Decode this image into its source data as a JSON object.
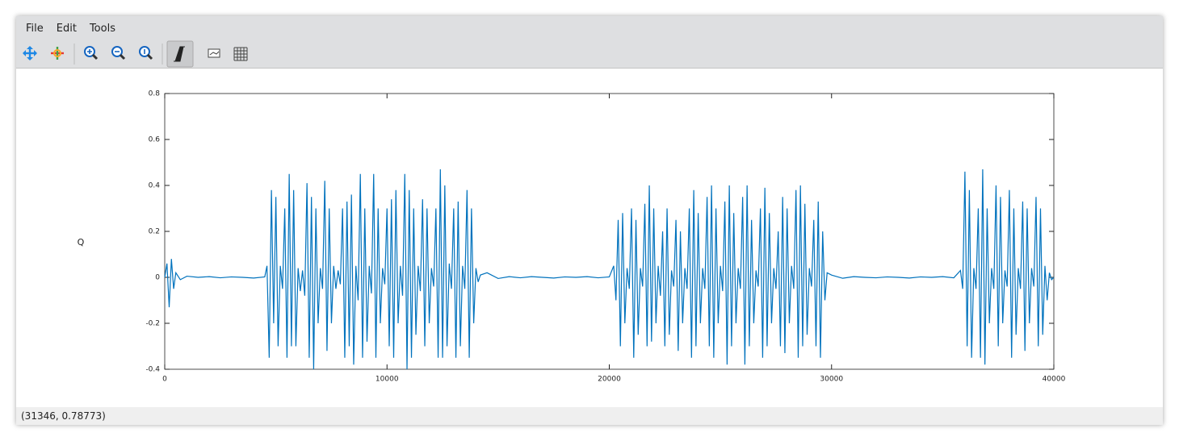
{
  "menu": [
    "File",
    "Edit",
    "Tools"
  ],
  "status": "(31346, 0.78773)",
  "chart_data": {
    "type": "line",
    "ylabel": "Q",
    "color": "#0072bd",
    "xlim": [
      0,
      40000
    ],
    "ylim": [
      -0.4,
      0.8
    ],
    "xticks": [
      0,
      10000,
      20000,
      30000,
      40000
    ],
    "yticks": [
      -0.4,
      -0.2,
      0,
      0.2,
      0.4,
      0.6,
      0.8
    ],
    "x": [
      0,
      100,
      200,
      300,
      400,
      500,
      700,
      1000,
      1500,
      2000,
      2500,
      3000,
      3500,
      4000,
      4500,
      4600,
      4700,
      4800,
      4900,
      5000,
      5100,
      5200,
      5300,
      5400,
      5500,
      5600,
      5700,
      5800,
      5900,
      6000,
      6100,
      6200,
      6300,
      6400,
      6500,
      6600,
      6700,
      6800,
      6900,
      7000,
      7100,
      7200,
      7300,
      7400,
      7500,
      7600,
      7700,
      7800,
      7900,
      8000,
      8100,
      8200,
      8300,
      8400,
      8500,
      8600,
      8700,
      8800,
      8900,
      9000,
      9100,
      9200,
      9300,
      9400,
      9500,
      9600,
      9700,
      9800,
      9900,
      10000,
      10100,
      10200,
      10300,
      10400,
      10500,
      10600,
      10700,
      10800,
      10900,
      11000,
      11100,
      11200,
      11300,
      11400,
      11500,
      11600,
      11700,
      11800,
      11900,
      12000,
      12100,
      12200,
      12300,
      12400,
      12500,
      12600,
      12700,
      12800,
      12900,
      13000,
      13100,
      13200,
      13300,
      13400,
      13500,
      13600,
      13700,
      13800,
      13900,
      14000,
      14100,
      14200,
      14500,
      15000,
      15500,
      16000,
      16500,
      17000,
      17500,
      18000,
      18500,
      19000,
      19500,
      20000,
      20200,
      20300,
      20400,
      20500,
      20600,
      20700,
      20800,
      20900,
      21000,
      21100,
      21200,
      21300,
      21400,
      21500,
      21600,
      21700,
      21800,
      21900,
      22000,
      22100,
      22200,
      22300,
      22400,
      22500,
      22600,
      22700,
      22800,
      22900,
      23000,
      23100,
      23200,
      23300,
      23400,
      23500,
      23600,
      23700,
      23800,
      23900,
      24000,
      24100,
      24200,
      24300,
      24400,
      24500,
      24600,
      24700,
      24800,
      24900,
      25000,
      25100,
      25200,
      25300,
      25400,
      25500,
      25600,
      25700,
      25800,
      25900,
      26000,
      26100,
      26200,
      26300,
      26400,
      26500,
      26600,
      26700,
      26800,
      26900,
      27000,
      27100,
      27200,
      27300,
      27400,
      27500,
      27600,
      27700,
      27800,
      27900,
      28000,
      28100,
      28200,
      28300,
      28400,
      28500,
      28600,
      28700,
      28800,
      28900,
      29000,
      29100,
      29200,
      29300,
      29400,
      29500,
      29600,
      29700,
      29800,
      30000,
      30500,
      31000,
      31500,
      32000,
      32500,
      33000,
      33500,
      34000,
      34500,
      35000,
      35500,
      35800,
      35900,
      36000,
      36100,
      36200,
      36300,
      36400,
      36500,
      36600,
      36700,
      36800,
      36900,
      37000,
      37100,
      37200,
      37300,
      37400,
      37500,
      37600,
      37700,
      37800,
      37900,
      38000,
      38100,
      38200,
      38300,
      38400,
      38500,
      38600,
      38700,
      38800,
      38900,
      39000,
      39100,
      39200,
      39300,
      39400,
      39500,
      39600,
      39700,
      39800,
      39900,
      40000
    ],
    "values": [
      0,
      0.06,
      -0.13,
      0.08,
      -0.05,
      0.02,
      -0.01,
      0.005,
      0,
      0.003,
      -0.002,
      0.002,
      0,
      -0.003,
      0.002,
      0.05,
      -0.35,
      0.38,
      -0.2,
      0.35,
      -0.3,
      0.05,
      -0.05,
      0.3,
      -0.35,
      0.45,
      -0.3,
      0.38,
      -0.3,
      0.04,
      -0.06,
      0.03,
      -0.08,
      0.41,
      -0.35,
      0.35,
      -0.4,
      0.3,
      -0.2,
      0.04,
      -0.05,
      0.42,
      -0.32,
      0.3,
      -0.2,
      0.05,
      -0.05,
      0.03,
      -0.03,
      0.3,
      -0.35,
      0.33,
      -0.3,
      0.36,
      -0.38,
      0.05,
      -0.1,
      0.45,
      -0.35,
      0.3,
      -0.28,
      0.05,
      -0.07,
      0.45,
      -0.35,
      0.3,
      -0.2,
      0.04,
      -0.03,
      0.3,
      -0.3,
      0.34,
      -0.35,
      0.38,
      -0.2,
      0.05,
      -0.08,
      0.45,
      -0.4,
      0.38,
      -0.35,
      0.3,
      -0.25,
      0.05,
      -0.06,
      0.34,
      -0.3,
      0.3,
      -0.2,
      0.04,
      -0.04,
      0.3,
      -0.35,
      0.47,
      -0.35,
      0.4,
      -0.3,
      0.06,
      -0.05,
      0.3,
      -0.35,
      0.33,
      -0.3,
      0.05,
      -0.05,
      0.38,
      -0.35,
      0.3,
      -0.2,
      0.04,
      -0.02,
      0.01,
      0.02,
      -0.005,
      0.003,
      -0.002,
      0.003,
      0,
      -0.003,
      0.002,
      0,
      0.003,
      -0.002,
      0.002,
      0.05,
      -0.1,
      0.25,
      -0.3,
      0.28,
      -0.2,
      0.04,
      -0.05,
      0.3,
      -0.35,
      0.25,
      -0.25,
      0.04,
      -0.04,
      0.32,
      -0.3,
      0.4,
      -0.28,
      0.3,
      -0.2,
      0.05,
      -0.08,
      0.2,
      -0.3,
      0.3,
      -0.25,
      0.03,
      -0.04,
      0.25,
      -0.32,
      0.2,
      -0.2,
      0.04,
      -0.05,
      0.3,
      -0.35,
      0.38,
      -0.3,
      0.28,
      -0.2,
      0.04,
      -0.05,
      0.35,
      -0.3,
      0.4,
      -0.35,
      0.3,
      -0.2,
      0.05,
      -0.06,
      0.33,
      -0.38,
      0.4,
      -0.3,
      0.28,
      -0.2,
      0.04,
      -0.05,
      0.35,
      -0.38,
      0.4,
      -0.3,
      0.25,
      -0.2,
      0.03,
      -0.04,
      0.3,
      -0.35,
      0.39,
      -0.3,
      0.28,
      -0.2,
      0.04,
      -0.05,
      0.2,
      -0.3,
      0.35,
      -0.33,
      0.3,
      -0.2,
      0.05,
      -0.05,
      0.38,
      -0.35,
      0.4,
      -0.3,
      0.32,
      -0.25,
      0.04,
      -0.04,
      0.25,
      -0.3,
      0.33,
      -0.35,
      0.2,
      -0.1,
      0.02,
      0.01,
      -0.004,
      0.003,
      0,
      -0.002,
      0.002,
      0,
      -0.003,
      0.002,
      0,
      0.003,
      -0.002,
      0.03,
      -0.05,
      0.46,
      -0.3,
      0.38,
      -0.35,
      0.04,
      -0.05,
      0.3,
      -0.35,
      0.47,
      -0.38,
      0.3,
      -0.2,
      0.04,
      -0.05,
      0.4,
      -0.3,
      0.35,
      -0.2,
      0.03,
      -0.04,
      0.38,
      -0.35,
      0.3,
      -0.25,
      0.04,
      -0.05,
      0.33,
      -0.32,
      0.3,
      -0.2,
      0.04,
      -0.04,
      0.35,
      -0.3,
      0.3,
      -0.25,
      0.05,
      -0.1,
      0.02,
      -0.01,
      0
    ]
  }
}
